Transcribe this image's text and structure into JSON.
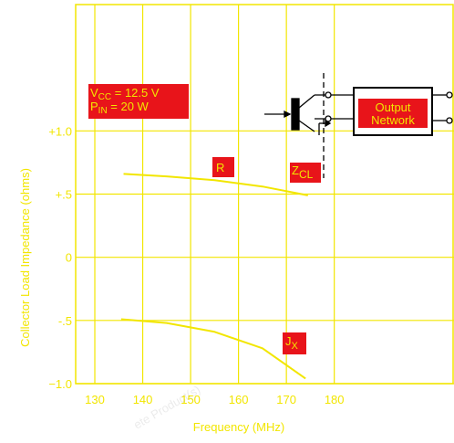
{
  "chart_data": {
    "type": "line",
    "x_label": "Frequency (MHz)",
    "y_label": "Collector Load Impedance (ohms)",
    "xlim": [
      126,
      205
    ],
    "xticks": [
      130,
      140,
      150,
      160,
      170,
      180
    ],
    "ylim": [
      -1.0,
      2.0
    ],
    "yticks": [
      {
        "value": -1.0,
        "label": "−1.0"
      },
      {
        "value": -0.5,
        "label": "-.5"
      },
      {
        "value": 0,
        "label": "0"
      },
      {
        "value": 0.5,
        "label": "+.5"
      },
      {
        "value": 1.0,
        "label": "+1.0"
      }
    ],
    "grid": true,
    "color": "#f2e600",
    "series": [
      {
        "name": "R",
        "color": "#f2e600",
        "x": [
          136,
          145,
          155,
          165,
          174.5
        ],
        "values": [
          0.66,
          0.64,
          0.61,
          0.56,
          0.49
        ]
      },
      {
        "name": "J",
        "name_sub": "X",
        "color": "#f2e600",
        "x": [
          135.5,
          145,
          155,
          165,
          174
        ],
        "values": [
          -0.49,
          -0.52,
          -0.59,
          -0.72,
          -0.96
        ]
      }
    ],
    "annotations": [
      {
        "text": "V",
        "sub": "CC",
        "rest": " = 12.5 V"
      },
      {
        "text": "P",
        "sub": "IN",
        "rest": " = 20 W"
      },
      {
        "text": "Z",
        "sub": "CL"
      }
    ],
    "diagram_label": [
      "Output",
      "Network"
    ],
    "watermark": "ete Product(s)"
  }
}
